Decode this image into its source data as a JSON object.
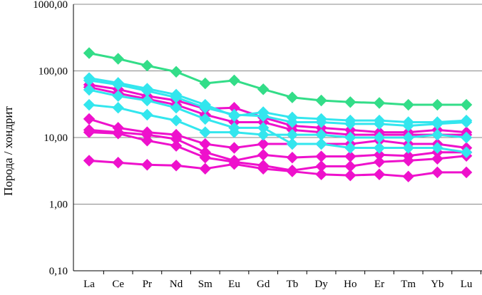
{
  "chart_data": {
    "type": "line",
    "title": "",
    "xlabel": "",
    "ylabel": "Порода / хондрит",
    "yscale": "log",
    "ylim": [
      0.1,
      1000
    ],
    "y_ticks": [
      0.1,
      1,
      10,
      100,
      1000
    ],
    "y_tick_labels": [
      "0,10",
      "1,00",
      "10,00",
      "100,00",
      "1000,00"
    ],
    "categories": [
      "La",
      "Ce",
      "Pr",
      "Nd",
      "Sm",
      "Eu",
      "Gd",
      "Tb",
      "Dy",
      "Ho",
      "Er",
      "Tm",
      "Yb",
      "Lu"
    ],
    "grid": "horizontal",
    "legend": "none",
    "marker": "diamond",
    "colors": {
      "green": "#33dd88",
      "cyan": "#33e6ee",
      "magenta": "#ee11cc"
    },
    "series": [
      {
        "color": "green",
        "values": [
          185,
          152,
          120,
          97,
          65,
          72,
          53,
          40,
          36,
          34,
          33,
          31,
          31,
          31
        ]
      },
      {
        "color": "cyan",
        "values": [
          78,
          66,
          54,
          44,
          31,
          21,
          24,
          20,
          19,
          18,
          18,
          17,
          17,
          18
        ]
      },
      {
        "color": "cyan",
        "values": [
          72,
          62,
          50,
          40,
          28,
          22,
          21,
          17,
          17,
          16,
          16,
          15,
          16,
          17
        ]
      },
      {
        "color": "cyan",
        "values": [
          52,
          42,
          36,
          28,
          19,
          14,
          14,
          8,
          8,
          7,
          7,
          7,
          7,
          6
        ]
      },
      {
        "color": "cyan",
        "values": [
          31,
          28,
          22,
          18,
          12,
          12,
          11,
          11,
          11,
          10,
          10,
          10,
          11,
          10
        ]
      },
      {
        "color": "magenta",
        "values": [
          62,
          53,
          42,
          36,
          27,
          28,
          20,
          15,
          14,
          13,
          12,
          12,
          13,
          12
        ]
      },
      {
        "color": "magenta",
        "values": [
          57,
          46,
          38,
          31,
          22,
          17,
          17,
          13,
          12,
          11,
          11,
          11,
          11,
          11
        ]
      },
      {
        "color": "magenta",
        "values": [
          19,
          14,
          12,
          11,
          8,
          7,
          8,
          8,
          8,
          8,
          9,
          8,
          8,
          7
        ]
      },
      {
        "color": "magenta",
        "values": [
          13,
          12,
          11,
          9.5,
          6,
          4.5,
          5.5,
          5,
          5.2,
          5.2,
          5.5,
          5.3,
          6,
          6
        ]
      },
      {
        "color": "magenta",
        "values": [
          12,
          11.5,
          9,
          7.5,
          5,
          4.3,
          3.8,
          3.2,
          3.7,
          3.7,
          4.3,
          4.5,
          4.8,
          5.3
        ]
      },
      {
        "color": "magenta",
        "values": [
          4.5,
          4.2,
          3.9,
          3.8,
          3.4,
          4.0,
          3.4,
          3.1,
          2.8,
          2.7,
          2.8,
          2.6,
          3.0,
          3.0
        ]
      }
    ]
  }
}
